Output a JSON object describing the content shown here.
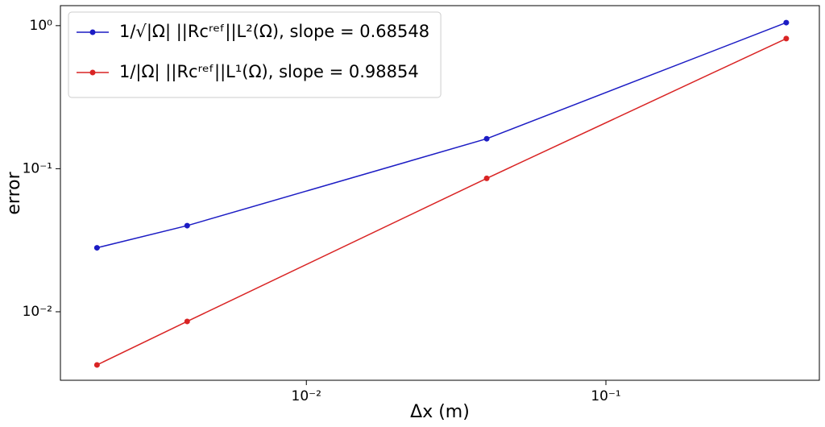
{
  "chart_data": {
    "type": "line",
    "x_label": "Δx (m)",
    "y_label": "error",
    "log_x": true,
    "log_y": true,
    "grid": false,
    "legend": "upper left",
    "x": [
      0.002,
      0.004,
      0.04,
      0.4
    ],
    "series": [
      {
        "name": "1/√|Ω| ||Rcʳᵉᶠ||L²(Ω), slope = 0.68548",
        "color": "#1c1cc4",
        "values": [
          0.028,
          0.04,
          0.162,
          1.05
        ]
      },
      {
        "name": "1/|Ω| ||Rcʳᵉᶠ||L¹(Ω), slope = 0.98854",
        "color": "#d92424",
        "values": [
          0.00425,
          0.00856,
          0.0856,
          0.812
        ]
      }
    ],
    "xlim": [
      0.00151,
      0.516
    ],
    "ylim": [
      0.00332,
      1.38
    ],
    "xticks": [
      {
        "value": 0.01,
        "label": "10⁻²"
      },
      {
        "value": 0.1,
        "label": "10⁻¹"
      }
    ],
    "yticks": [
      {
        "value": 0.01,
        "label": "10⁻²"
      },
      {
        "value": 0.1,
        "label": "10⁻¹"
      },
      {
        "value": 1,
        "label": "10⁰"
      }
    ]
  }
}
